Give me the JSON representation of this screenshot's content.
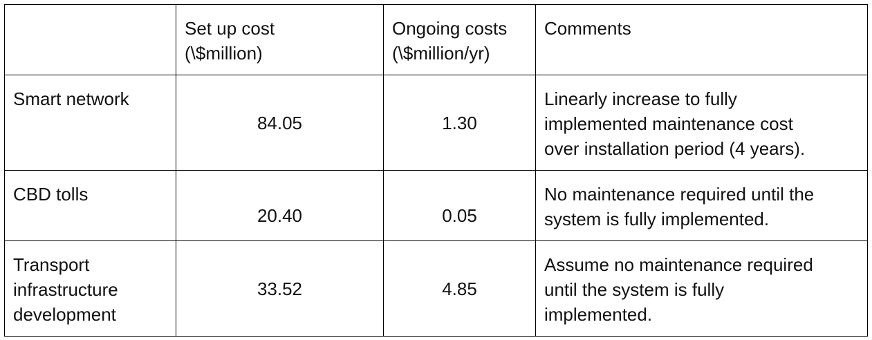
{
  "header": {
    "col1": "",
    "col2_line1": "Set up cost",
    "col2_line2": "(\\$million)",
    "col3_line1": "Ongoing costs",
    "col3_line2": "(\\$million/yr)",
    "col4": "Comments"
  },
  "rows": [
    {
      "name": "Smart network",
      "setup_cost": "84.05",
      "ongoing_cost": "1.30",
      "comment_lines": [
        "Linearly increase to fully",
        "implemented maintenance cost",
        "over installation period (4 years)."
      ]
    },
    {
      "name": "CBD tolls",
      "setup_cost": "20.40",
      "ongoing_cost": "0.05",
      "comment_lines": [
        "No maintenance required until the",
        "system is fully implemented."
      ]
    },
    {
      "name_lines": [
        "Transport",
        "infrastructure",
        "development"
      ],
      "setup_cost": "33.52",
      "ongoing_cost": "4.85",
      "comment_lines": [
        "Assume no maintenance required",
        "until the system is fully",
        "implemented."
      ]
    }
  ]
}
